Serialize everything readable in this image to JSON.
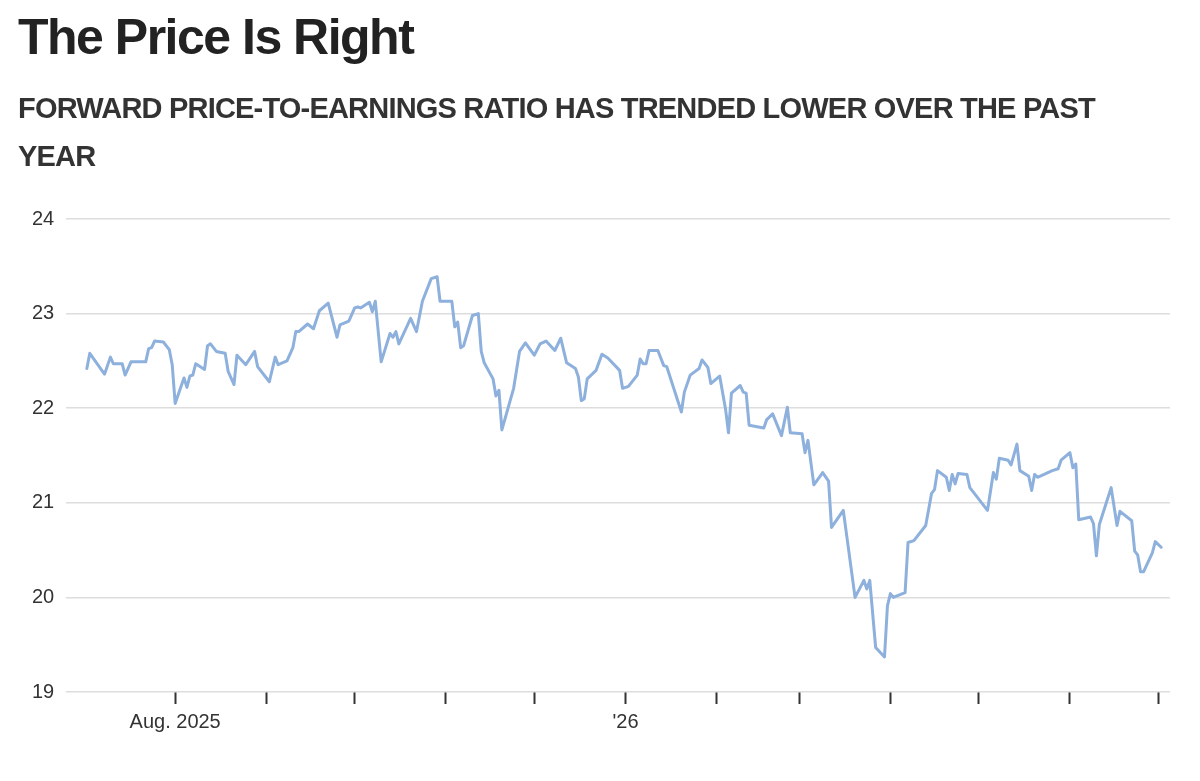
{
  "chart_data": {
    "type": "line",
    "title": "The Price Is Right",
    "subtitle": "FORWARD PRICE-TO-EARNINGS RATIO HAS TRENDED LOWER OVER THE PAST YEAR",
    "x": [
      "2025-07-02",
      "2025-07-03",
      "2025-07-08",
      "2025-07-10",
      "2025-07-11",
      "2025-07-14",
      "2025-07-15",
      "2025-07-17",
      "2025-07-22",
      "2025-07-23",
      "2025-07-24",
      "2025-07-25",
      "2025-07-28",
      "2025-07-30",
      "2025-07-31",
      "2025-08-01",
      "2025-08-04",
      "2025-08-05",
      "2025-08-06",
      "2025-08-07",
      "2025-08-08",
      "2025-08-11",
      "2025-08-12",
      "2025-08-13",
      "2025-08-15",
      "2025-08-18",
      "2025-08-19",
      "2025-08-21",
      "2025-08-22",
      "2025-08-25",
      "2025-08-28",
      "2025-08-29",
      "2025-09-02",
      "2025-09-04",
      "2025-09-05",
      "2025-09-08",
      "2025-09-10",
      "2025-09-11",
      "2025-09-12",
      "2025-09-15",
      "2025-09-17",
      "2025-09-19",
      "2025-09-22",
      "2025-09-25",
      "2025-09-26",
      "2025-09-29",
      "2025-10-01",
      "2025-10-02",
      "2025-10-03",
      "2025-10-06",
      "2025-10-07",
      "2025-10-08",
      "2025-10-10",
      "2025-10-13",
      "2025-10-14",
      "2025-10-15",
      "2025-10-16",
      "2025-10-20",
      "2025-10-22",
      "2025-10-24",
      "2025-10-27",
      "2025-10-29",
      "2025-10-30",
      "2025-11-03",
      "2025-11-04",
      "2025-11-05",
      "2025-11-06",
      "2025-11-07",
      "2025-11-10",
      "2025-11-12",
      "2025-11-13",
      "2025-11-14",
      "2025-11-17",
      "2025-11-18",
      "2025-11-19",
      "2025-11-20",
      "2025-11-24",
      "2025-11-26",
      "2025-11-28",
      "2025-12-01",
      "2025-12-03",
      "2025-12-05",
      "2025-12-08",
      "2025-12-10",
      "2025-12-12",
      "2025-12-15",
      "2025-12-16",
      "2025-12-17",
      "2025-12-18",
      "2025-12-19",
      "2025-12-22",
      "2025-12-24",
      "2025-12-26",
      "2025-12-30",
      "2025-12-31",
      "2026-01-02",
      "2026-01-05",
      "2026-01-06",
      "2026-01-07",
      "2026-01-08",
      "2026-01-09",
      "2026-01-12",
      "2026-01-14",
      "2026-01-15",
      "2026-01-20",
      "2026-01-21",
      "2026-01-23",
      "2026-01-26",
      "2026-01-27",
      "2026-01-29",
      "2026-01-30",
      "2026-02-02",
      "2026-02-04",
      "2026-02-05",
      "2026-02-06",
      "2026-02-09",
      "2026-02-10",
      "2026-02-11",
      "2026-02-12",
      "2026-02-17",
      "2026-02-18",
      "2026-02-20",
      "2026-02-23",
      "2026-02-25",
      "2026-02-26",
      "2026-03-02",
      "2026-03-03",
      "2026-03-04",
      "2026-03-06",
      "2026-03-09",
      "2026-03-11",
      "2026-03-12",
      "2026-03-16",
      "2026-03-20",
      "2026-03-23",
      "2026-03-24",
      "2026-03-25",
      "2026-03-27",
      "2026-03-30",
      "2026-03-31",
      "2026-04-01",
      "2026-04-02",
      "2026-04-06",
      "2026-04-07",
      "2026-04-09",
      "2026-04-13",
      "2026-04-15",
      "2026-04-16",
      "2026-04-17",
      "2026-04-20",
      "2026-04-21",
      "2026-04-22",
      "2026-04-23",
      "2026-04-24",
      "2026-04-27",
      "2026-04-28",
      "2026-05-04",
      "2026-05-06",
      "2026-05-07",
      "2026-05-08",
      "2026-05-11",
      "2026-05-12",
      "2026-05-14",
      "2026-05-15",
      "2026-05-18",
      "2026-05-19",
      "2026-05-20",
      "2026-05-21",
      "2026-05-26",
      "2026-05-28",
      "2026-05-29",
      "2026-06-01",
      "2026-06-02",
      "2026-06-03",
      "2026-06-04",
      "2026-06-08",
      "2026-06-09",
      "2026-06-10",
      "2026-06-11",
      "2026-06-15",
      "2026-06-17",
      "2026-06-18",
      "2026-06-22",
      "2026-06-23",
      "2026-06-24",
      "2026-06-25",
      "2026-06-26",
      "2026-06-29",
      "2026-06-30",
      "2026-07-02"
    ],
    "series": [
      {
        "color": "#8db0dc",
        "values": [
          22.42,
          22.58,
          22.36,
          22.54,
          22.47,
          22.47,
          22.35,
          22.49,
          22.49,
          22.63,
          22.64,
          22.71,
          22.7,
          22.62,
          22.46,
          22.05,
          22.32,
          22.22,
          22.34,
          22.35,
          22.47,
          22.41,
          22.66,
          22.68,
          22.6,
          22.58,
          22.39,
          22.25,
          22.56,
          22.46,
          22.6,
          22.44,
          22.28,
          22.54,
          22.46,
          22.5,
          22.64,
          22.81,
          22.81,
          22.89,
          22.84,
          23.03,
          23.11,
          22.75,
          22.88,
          22.92,
          23.06,
          23.07,
          23.06,
          23.12,
          23.02,
          23.13,
          22.49,
          22.79,
          22.75,
          22.81,
          22.68,
          22.95,
          22.81,
          23.13,
          23.37,
          23.39,
          23.13,
          23.13,
          22.86,
          22.91,
          22.64,
          22.66,
          22.98,
          23.0,
          22.6,
          22.48,
          22.31,
          22.13,
          22.19,
          21.77,
          22.21,
          22.6,
          22.69,
          22.56,
          22.68,
          22.71,
          22.61,
          22.74,
          22.48,
          22.42,
          22.33,
          22.08,
          22.1,
          22.31,
          22.4,
          22.57,
          22.53,
          22.4,
          22.21,
          22.23,
          22.35,
          22.52,
          22.47,
          22.47,
          22.61,
          22.61,
          22.45,
          22.44,
          21.96,
          22.17,
          22.35,
          22.42,
          22.51,
          22.43,
          22.26,
          22.34,
          21.99,
          21.74,
          22.16,
          22.24,
          22.17,
          22.16,
          21.82,
          21.79,
          21.88,
          21.94,
          21.71,
          22.01,
          21.74,
          21.73,
          21.53,
          21.66,
          21.19,
          21.32,
          21.23,
          20.74,
          20.92,
          20.0,
          20.18,
          20.09,
          20.18,
          19.47,
          19.37,
          19.91,
          20.04,
          20.0,
          20.05,
          20.58,
          20.6,
          20.76,
          21.1,
          21.14,
          21.34,
          21.27,
          21.13,
          21.3,
          21.2,
          21.31,
          21.3,
          21.16,
          20.92,
          21.32,
          21.25,
          21.47,
          21.45,
          21.4,
          21.62,
          21.34,
          21.28,
          21.13,
          21.3,
          21.27,
          21.34,
          21.36,
          21.45,
          21.53,
          21.37,
          21.41,
          20.82,
          20.85,
          20.78,
          20.44,
          20.77,
          21.16,
          20.76,
          20.91,
          20.81,
          20.49,
          20.45,
          20.27,
          20.27,
          20.47,
          20.59,
          20.53
        ]
      }
    ],
    "xlim": [
      "2025-06-25",
      "2026-07-05"
    ],
    "xticks": [
      {
        "value": "2025-08-01",
        "label": "Aug. 2025"
      },
      {
        "value": "2025-09-01",
        "label": null
      },
      {
        "value": "2025-10-01",
        "label": null
      },
      {
        "value": "2025-11-01",
        "label": null
      },
      {
        "value": "2025-12-01",
        "label": null
      },
      {
        "value": "2026-01-01",
        "label": "'26"
      },
      {
        "value": "2026-02-01",
        "label": null
      },
      {
        "value": "2026-03-01",
        "label": null
      },
      {
        "value": "2026-04-01",
        "label": null
      },
      {
        "value": "2026-05-01",
        "label": null
      },
      {
        "value": "2026-06-01",
        "label": null
      },
      {
        "value": "2026-07-01",
        "label": null
      }
    ],
    "ylim": [
      19,
      24
    ],
    "yticks": [
      19,
      20,
      21,
      22,
      23,
      24
    ],
    "grid": "y",
    "legend": false,
    "marker": "none",
    "line_style": "solid"
  }
}
